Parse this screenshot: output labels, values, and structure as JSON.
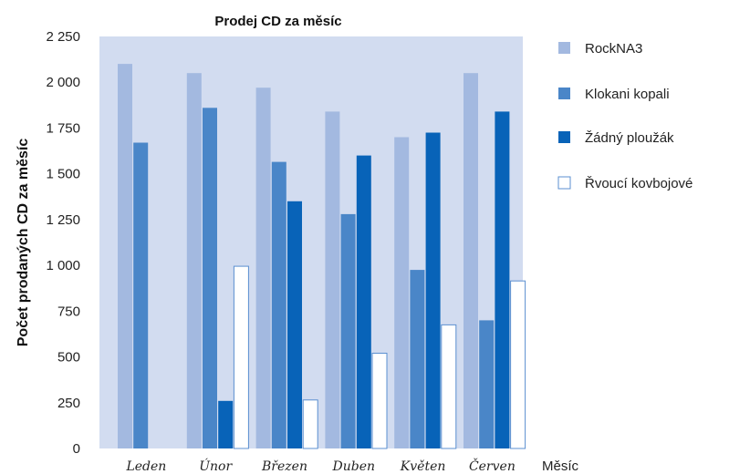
{
  "chart_data": {
    "type": "bar",
    "title": "Prodej CD za měsíc",
    "xlabel": "Měsíc",
    "ylabel": "Počet prodaných CD za  měsíc",
    "ylim": [
      0,
      2250
    ],
    "yticks": [
      0,
      250,
      500,
      750,
      1000,
      1250,
      1500,
      1750,
      2000,
      2250
    ],
    "ytick_labels": [
      "0",
      "250",
      "500",
      "750",
      "1 000",
      "1 250",
      "1 500",
      "1 750",
      "2 000",
      "2 250"
    ],
    "categories": [
      "Leden",
      "Únor",
      "Březen",
      "Duben",
      "Květen",
      "Červen"
    ],
    "series": [
      {
        "name": "RockNA3",
        "color": "#a3b9e0",
        "values": [
          2100,
          2050,
          1970,
          1840,
          1700,
          2050
        ]
      },
      {
        "name": "Klokani kopali",
        "color": "#4a86c8",
        "values": [
          1670,
          1860,
          1565,
          1280,
          975,
          700
        ]
      },
      {
        "name": "Žádný ploužák",
        "color": "#0863b8",
        "values": [
          0,
          260,
          1350,
          1600,
          1725,
          1840
        ]
      },
      {
        "name": "Řvoucí kovbojové",
        "color": "#ffffff",
        "values": [
          0,
          995,
          265,
          520,
          675,
          915
        ]
      }
    ],
    "grid": false,
    "legend_position": "right",
    "plot_background": "#d2dcf0"
  }
}
